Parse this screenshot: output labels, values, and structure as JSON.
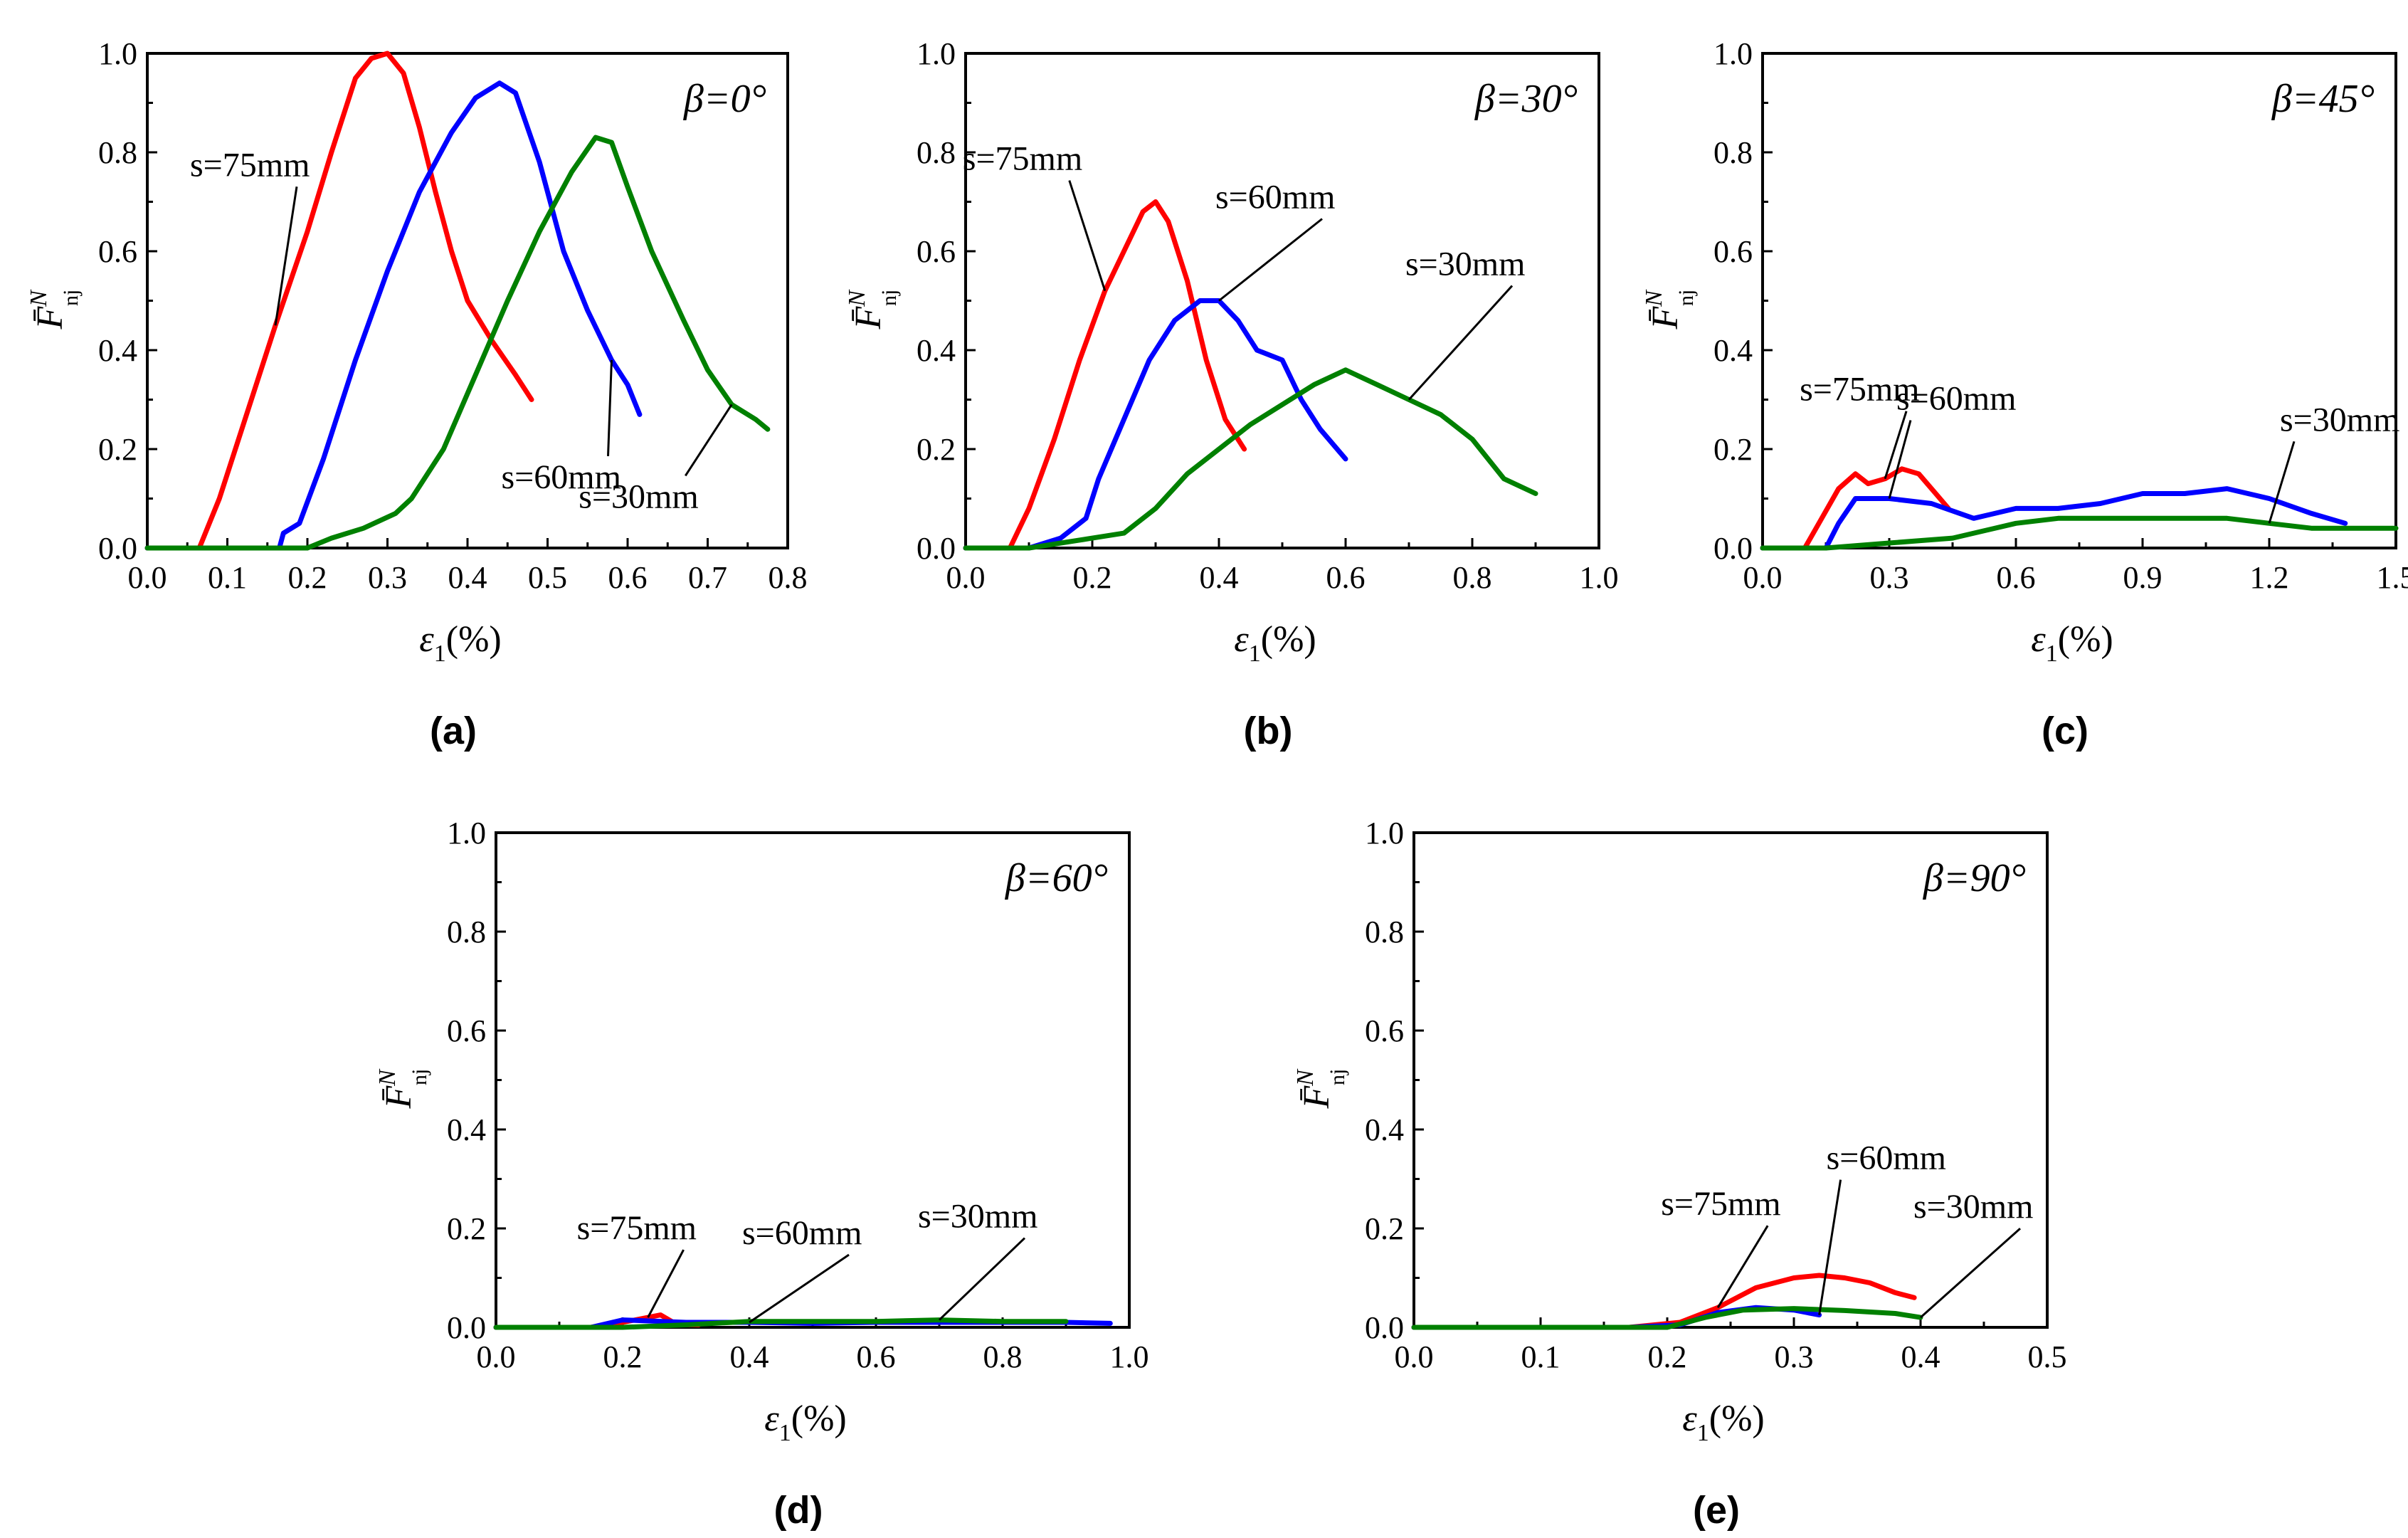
{
  "ylabel": "F̄",
  "ylabel_sup": "N",
  "ylabel_sub": "nj",
  "xlabel": "ε",
  "xlabel_sub": "1",
  "xlabel_unit": "(%)",
  "colors": {
    "s75": "#ff0000",
    "s60": "#0000ff",
    "s30": "#008000"
  },
  "chart_data": [
    {
      "type": "line",
      "panel": "(a)",
      "annotation": "β=0°",
      "xlim": [
        0,
        0.8
      ],
      "ylim": [
        0,
        1.0
      ],
      "xticks": [
        "0.0",
        "0.1",
        "0.2",
        "0.3",
        "0.4",
        "0.5",
        "0.6",
        "0.7",
        "0.8"
      ],
      "yticks": [
        "0.0",
        "0.2",
        "0.4",
        "0.6",
        "0.8",
        "1.0"
      ],
      "series": [
        {
          "name": "s=75mm",
          "color": "#ff0000",
          "points": [
            [
              0,
              0
            ],
            [
              0.065,
              0
            ],
            [
              0.09,
              0.1
            ],
            [
              0.12,
              0.25
            ],
            [
              0.16,
              0.45
            ],
            [
              0.2,
              0.64
            ],
            [
              0.23,
              0.8
            ],
            [
              0.26,
              0.95
            ],
            [
              0.28,
              0.99
            ],
            [
              0.3,
              1.0
            ],
            [
              0.32,
              0.96
            ],
            [
              0.34,
              0.85
            ],
            [
              0.36,
              0.72
            ],
            [
              0.38,
              0.6
            ],
            [
              0.4,
              0.5
            ],
            [
              0.43,
              0.42
            ],
            [
              0.46,
              0.35
            ],
            [
              0.48,
              0.3
            ]
          ]
        },
        {
          "name": "s=60mm",
          "color": "#0000ff",
          "points": [
            [
              0,
              0
            ],
            [
              0.165,
              0
            ],
            [
              0.17,
              0.03
            ],
            [
              0.19,
              0.05
            ],
            [
              0.22,
              0.18
            ],
            [
              0.26,
              0.38
            ],
            [
              0.3,
              0.56
            ],
            [
              0.34,
              0.72
            ],
            [
              0.38,
              0.84
            ],
            [
              0.41,
              0.91
            ],
            [
              0.44,
              0.94
            ],
            [
              0.46,
              0.92
            ],
            [
              0.49,
              0.78
            ],
            [
              0.52,
              0.6
            ],
            [
              0.55,
              0.48
            ],
            [
              0.58,
              0.38
            ],
            [
              0.6,
              0.33
            ],
            [
              0.615,
              0.27
            ]
          ]
        },
        {
          "name": "s=30mm",
          "color": "#008000",
          "points": [
            [
              0,
              0
            ],
            [
              0.2,
              0
            ],
            [
              0.23,
              0.02
            ],
            [
              0.27,
              0.04
            ],
            [
              0.31,
              0.07
            ],
            [
              0.33,
              0.1
            ],
            [
              0.37,
              0.2
            ],
            [
              0.41,
              0.35
            ],
            [
              0.45,
              0.5
            ],
            [
              0.49,
              0.64
            ],
            [
              0.53,
              0.76
            ],
            [
              0.56,
              0.83
            ],
            [
              0.58,
              0.82
            ],
            [
              0.6,
              0.73
            ],
            [
              0.63,
              0.6
            ],
            [
              0.67,
              0.46
            ],
            [
              0.7,
              0.36
            ],
            [
              0.73,
              0.29
            ],
            [
              0.76,
              0.26
            ],
            [
              0.775,
              0.24
            ]
          ]
        }
      ],
      "labels": [
        {
          "text": "s=75mm",
          "series": 0
        },
        {
          "text": "s=60mm",
          "series": 1
        },
        {
          "text": "s=30mm",
          "series": 2
        }
      ]
    },
    {
      "type": "line",
      "panel": "(b)",
      "annotation": "β=30°",
      "xlim": [
        0,
        1.0
      ],
      "ylim": [
        0,
        1.0
      ],
      "xticks": [
        "0.0",
        "0.2",
        "0.4",
        "0.6",
        "0.8",
        "1.0"
      ],
      "yticks": [
        "0.0",
        "0.2",
        "0.4",
        "0.6",
        "0.8",
        "1.0"
      ],
      "series": [
        {
          "name": "s=75mm",
          "color": "#ff0000",
          "points": [
            [
              0,
              0
            ],
            [
              0.07,
              0
            ],
            [
              0.1,
              0.08
            ],
            [
              0.14,
              0.22
            ],
            [
              0.18,
              0.38
            ],
            [
              0.22,
              0.52
            ],
            [
              0.25,
              0.6
            ],
            [
              0.28,
              0.68
            ],
            [
              0.3,
              0.7
            ],
            [
              0.32,
              0.66
            ],
            [
              0.35,
              0.54
            ],
            [
              0.38,
              0.38
            ],
            [
              0.41,
              0.26
            ],
            [
              0.44,
              0.2
            ]
          ]
        },
        {
          "name": "s=60mm",
          "color": "#0000ff",
          "points": [
            [
              0,
              0
            ],
            [
              0.1,
              0
            ],
            [
              0.15,
              0.02
            ],
            [
              0.19,
              0.06
            ],
            [
              0.21,
              0.14
            ],
            [
              0.25,
              0.26
            ],
            [
              0.29,
              0.38
            ],
            [
              0.33,
              0.46
            ],
            [
              0.37,
              0.5
            ],
            [
              0.4,
              0.5
            ],
            [
              0.43,
              0.46
            ],
            [
              0.46,
              0.4
            ],
            [
              0.5,
              0.38
            ],
            [
              0.53,
              0.3
            ],
            [
              0.56,
              0.24
            ],
            [
              0.6,
              0.18
            ]
          ]
        },
        {
          "name": "s=30mm",
          "color": "#008000",
          "points": [
            [
              0,
              0
            ],
            [
              0.1,
              0
            ],
            [
              0.2,
              0.02
            ],
            [
              0.25,
              0.03
            ],
            [
              0.3,
              0.08
            ],
            [
              0.35,
              0.15
            ],
            [
              0.4,
              0.2
            ],
            [
              0.45,
              0.25
            ],
            [
              0.5,
              0.29
            ],
            [
              0.55,
              0.33
            ],
            [
              0.6,
              0.36
            ],
            [
              0.65,
              0.33
            ],
            [
              0.7,
              0.3
            ],
            [
              0.75,
              0.27
            ],
            [
              0.8,
              0.22
            ],
            [
              0.85,
              0.14
            ],
            [
              0.9,
              0.11
            ]
          ]
        }
      ],
      "labels": [
        {
          "text": "s=75mm",
          "series": 0
        },
        {
          "text": "s=60mm",
          "series": 1
        },
        {
          "text": "s=30mm",
          "series": 2
        }
      ]
    },
    {
      "type": "line",
      "panel": "(c)",
      "annotation": "β=45°",
      "xlim": [
        0,
        1.5
      ],
      "ylim": [
        0,
        1.0
      ],
      "xticks": [
        "0.0",
        "0.3",
        "0.6",
        "0.9",
        "1.2",
        "1.5"
      ],
      "yticks": [
        "0.0",
        "0.2",
        "0.4",
        "0.6",
        "0.8",
        "1.0"
      ],
      "series": [
        {
          "name": "s=75mm",
          "color": "#ff0000",
          "points": [
            [
              0,
              0
            ],
            [
              0.1,
              0
            ],
            [
              0.14,
              0.06
            ],
            [
              0.18,
              0.12
            ],
            [
              0.22,
              0.15
            ],
            [
              0.25,
              0.13
            ],
            [
              0.29,
              0.14
            ],
            [
              0.33,
              0.16
            ],
            [
              0.37,
              0.15
            ],
            [
              0.41,
              0.11
            ],
            [
              0.44,
              0.08
            ]
          ]
        },
        {
          "name": "s=60mm",
          "color": "#0000ff",
          "points": [
            [
              0,
              0
            ],
            [
              0.15,
              0
            ],
            [
              0.18,
              0.05
            ],
            [
              0.22,
              0.1
            ],
            [
              0.26,
              0.1
            ],
            [
              0.3,
              0.1
            ],
            [
              0.4,
              0.09
            ],
            [
              0.5,
              0.06
            ],
            [
              0.6,
              0.08
            ],
            [
              0.7,
              0.08
            ],
            [
              0.8,
              0.09
            ],
            [
              0.9,
              0.11
            ],
            [
              1.0,
              0.11
            ],
            [
              1.1,
              0.12
            ],
            [
              1.2,
              0.1
            ],
            [
              1.3,
              0.07
            ],
            [
              1.38,
              0.05
            ]
          ]
        },
        {
          "name": "s=30mm",
          "color": "#008000",
          "points": [
            [
              0,
              0
            ],
            [
              0.15,
              0
            ],
            [
              0.3,
              0.01
            ],
            [
              0.45,
              0.02
            ],
            [
              0.6,
              0.05
            ],
            [
              0.7,
              0.06
            ],
            [
              0.8,
              0.06
            ],
            [
              0.9,
              0.06
            ],
            [
              1.0,
              0.06
            ],
            [
              1.1,
              0.06
            ],
            [
              1.2,
              0.05
            ],
            [
              1.3,
              0.04
            ],
            [
              1.4,
              0.04
            ],
            [
              1.5,
              0.04
            ]
          ]
        }
      ],
      "labels": [
        {
          "text": "s=75mm",
          "series": 0
        },
        {
          "text": "s=60mm",
          "series": 1
        },
        {
          "text": "s=30mm",
          "series": 2
        }
      ]
    },
    {
      "type": "line",
      "panel": "(d)",
      "annotation": "β=60°",
      "xlim": [
        0,
        1.0
      ],
      "ylim": [
        0,
        1.0
      ],
      "xticks": [
        "0.0",
        "0.2",
        "0.4",
        "0.6",
        "0.8",
        "1.0"
      ],
      "yticks": [
        "0.0",
        "0.2",
        "0.4",
        "0.6",
        "0.8",
        "1.0"
      ],
      "series": [
        {
          "name": "s=75mm",
          "color": "#ff0000",
          "points": [
            [
              0,
              0
            ],
            [
              0.15,
              0
            ],
            [
              0.2,
              0.01
            ],
            [
              0.24,
              0.02
            ],
            [
              0.26,
              0.025
            ],
            [
              0.28,
              0.01
            ],
            [
              0.3,
              0.005
            ],
            [
              0.32,
              0.005
            ]
          ]
        },
        {
          "name": "s=60mm",
          "color": "#0000ff",
          "points": [
            [
              0,
              0
            ],
            [
              0.15,
              0
            ],
            [
              0.2,
              0.015
            ],
            [
              0.3,
              0.01
            ],
            [
              0.4,
              0.01
            ],
            [
              0.5,
              0.008
            ],
            [
              0.6,
              0.01
            ],
            [
              0.7,
              0.01
            ],
            [
              0.8,
              0.01
            ],
            [
              0.9,
              0.01
            ],
            [
              0.97,
              0.008
            ]
          ]
        },
        {
          "name": "s=30mm",
          "color": "#008000",
          "points": [
            [
              0,
              0
            ],
            [
              0.2,
              0
            ],
            [
              0.3,
              0.005
            ],
            [
              0.4,
              0.012
            ],
            [
              0.5,
              0.012
            ],
            [
              0.6,
              0.012
            ],
            [
              0.7,
              0.015
            ],
            [
              0.8,
              0.012
            ],
            [
              0.9,
              0.012
            ]
          ]
        }
      ],
      "labels": [
        {
          "text": "s=75mm",
          "series": 0
        },
        {
          "text": "s=60mm",
          "series": 1
        },
        {
          "text": "s=30mm",
          "series": 2
        }
      ]
    },
    {
      "type": "line",
      "panel": "(e)",
      "annotation": "β=90°",
      "xlim": [
        0,
        0.5
      ],
      "ylim": [
        0,
        1.0
      ],
      "xticks": [
        "0.0",
        "0.1",
        "0.2",
        "0.3",
        "0.4",
        "0.5"
      ],
      "yticks": [
        "0.0",
        "0.2",
        "0.4",
        "0.6",
        "0.8",
        "1.0"
      ],
      "series": [
        {
          "name": "s=75mm",
          "color": "#ff0000",
          "points": [
            [
              0,
              0
            ],
            [
              0.17,
              0
            ],
            [
              0.21,
              0.01
            ],
            [
              0.24,
              0.04
            ],
            [
              0.27,
              0.08
            ],
            [
              0.3,
              0.1
            ],
            [
              0.32,
              0.105
            ],
            [
              0.34,
              0.1
            ],
            [
              0.36,
              0.09
            ],
            [
              0.38,
              0.07
            ],
            [
              0.395,
              0.06
            ]
          ]
        },
        {
          "name": "s=60mm",
          "color": "#0000ff",
          "points": [
            [
              0,
              0
            ],
            [
              0.17,
              0
            ],
            [
              0.21,
              0.005
            ],
            [
              0.24,
              0.03
            ],
            [
              0.27,
              0.04
            ],
            [
              0.3,
              0.035
            ],
            [
              0.32,
              0.025
            ]
          ]
        },
        {
          "name": "s=30mm",
          "color": "#008000",
          "points": [
            [
              0,
              0
            ],
            [
              0.2,
              0
            ],
            [
              0.23,
              0.02
            ],
            [
              0.26,
              0.035
            ],
            [
              0.3,
              0.038
            ],
            [
              0.34,
              0.034
            ],
            [
              0.38,
              0.028
            ],
            [
              0.4,
              0.02
            ]
          ]
        }
      ],
      "labels": [
        {
          "text": "s=75mm",
          "series": 0
        },
        {
          "text": "s=60mm",
          "series": 1
        },
        {
          "text": "s=30mm",
          "series": 2
        }
      ]
    }
  ]
}
